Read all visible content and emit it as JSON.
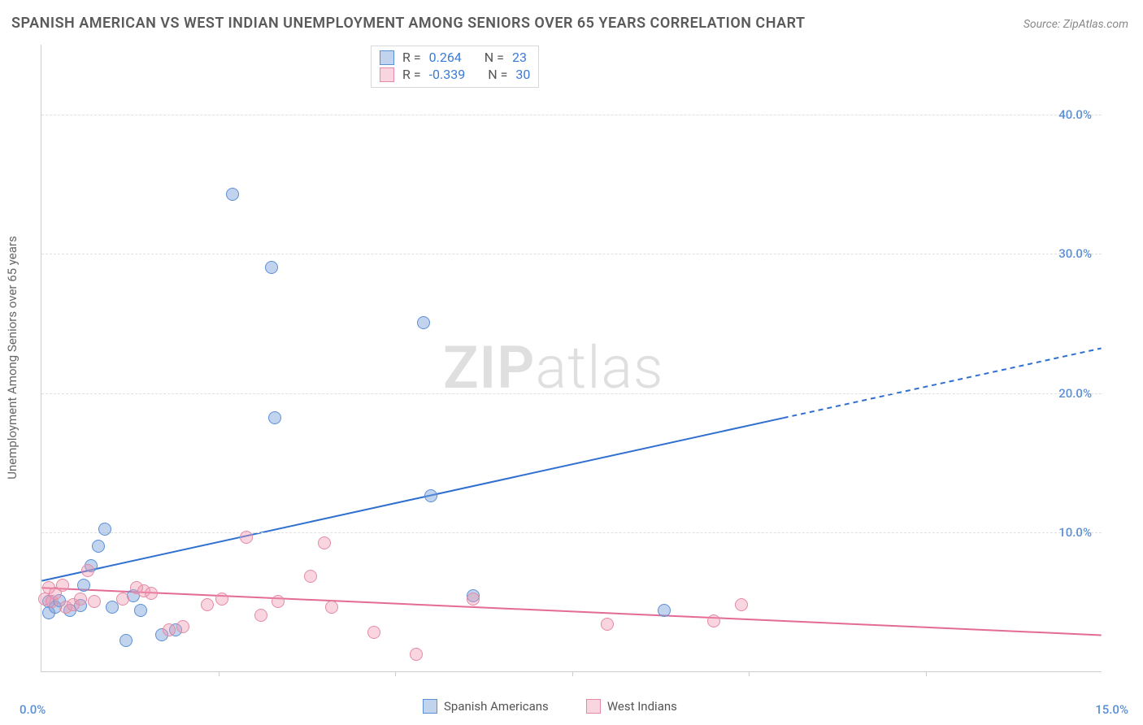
{
  "title": "SPANISH AMERICAN VS WEST INDIAN UNEMPLOYMENT AMONG SENIORS OVER 65 YEARS CORRELATION CHART",
  "source_label": "Source: ZipAtlas.com",
  "y_axis_label": "Unemployment Among Seniors over 65 years",
  "watermark_a": "ZIP",
  "watermark_b": "atlas",
  "chart": {
    "type": "scatter",
    "background_color": "#ffffff",
    "grid_color": "#e0e0e0",
    "axis_color": "#cccccc",
    "xlim": [
      0,
      15
    ],
    "ylim": [
      0,
      45
    ],
    "x_ticks": [
      2.5,
      5.0,
      7.5,
      10.0,
      12.5
    ],
    "y_ticks": [
      10,
      20,
      30,
      40
    ],
    "y_tick_labels": [
      "10.0%",
      "20.0%",
      "30.0%",
      "40.0%"
    ],
    "y_tick_color": "#5b8fd6",
    "x_min_label": "0.0%",
    "x_max_label": "15.0%",
    "x_label_color": "#5b8fd6",
    "label_fontsize": 15,
    "marker_radius": 8,
    "marker_stroke_width": 1,
    "trend_line_width": 2
  },
  "series": [
    {
      "id": "spanish",
      "label": "Spanish Americans",
      "marker_fill": "rgba(120,160,215,0.45)",
      "marker_stroke": "#5b8fd6",
      "line_color": "#2f6fd0",
      "R": "0.264",
      "N": "23",
      "trend": {
        "x0": 0,
        "y0": 6.5,
        "x1_solid": 10.5,
        "y1_solid": 18.2,
        "x1": 15,
        "y1": 23.2
      },
      "points": [
        {
          "x": 0.1,
          "y": 5.0
        },
        {
          "x": 0.1,
          "y": 4.2
        },
        {
          "x": 0.2,
          "y": 4.6
        },
        {
          "x": 0.25,
          "y": 5.1
        },
        {
          "x": 0.4,
          "y": 4.4
        },
        {
          "x": 0.55,
          "y": 4.7
        },
        {
          "x": 0.6,
          "y": 6.2
        },
        {
          "x": 0.7,
          "y": 7.6
        },
        {
          "x": 0.8,
          "y": 9.0
        },
        {
          "x": 0.9,
          "y": 10.2
        },
        {
          "x": 1.0,
          "y": 4.6
        },
        {
          "x": 1.2,
          "y": 2.2
        },
        {
          "x": 1.3,
          "y": 5.4
        },
        {
          "x": 1.4,
          "y": 4.4
        },
        {
          "x": 1.7,
          "y": 2.6
        },
        {
          "x": 1.9,
          "y": 3.0
        },
        {
          "x": 2.7,
          "y": 34.2
        },
        {
          "x": 3.25,
          "y": 29.0
        },
        {
          "x": 3.3,
          "y": 18.2
        },
        {
          "x": 5.4,
          "y": 25.0
        },
        {
          "x": 5.5,
          "y": 12.6
        },
        {
          "x": 6.1,
          "y": 5.4
        },
        {
          "x": 8.8,
          "y": 4.4
        }
      ]
    },
    {
      "id": "west-indian",
      "label": "West Indians",
      "marker_fill": "rgba(240,150,175,0.40)",
      "marker_stroke": "#e48aa6",
      "line_color": "#e36b94",
      "R": "-0.339",
      "N": "30",
      "trend": {
        "x0": 0,
        "y0": 6.0,
        "x1_solid": 15,
        "y1_solid": 2.6,
        "x1": 15,
        "y1": 2.6
      },
      "points": [
        {
          "x": 0.05,
          "y": 5.2
        },
        {
          "x": 0.1,
          "y": 6.0
        },
        {
          "x": 0.15,
          "y": 5.0
        },
        {
          "x": 0.2,
          "y": 5.6
        },
        {
          "x": 0.3,
          "y": 6.2
        },
        {
          "x": 0.35,
          "y": 4.6
        },
        {
          "x": 0.45,
          "y": 4.8
        },
        {
          "x": 0.55,
          "y": 5.2
        },
        {
          "x": 0.65,
          "y": 7.2
        },
        {
          "x": 0.75,
          "y": 5.0
        },
        {
          "x": 1.15,
          "y": 5.2
        },
        {
          "x": 1.35,
          "y": 6.0
        },
        {
          "x": 1.45,
          "y": 5.8
        },
        {
          "x": 1.55,
          "y": 5.6
        },
        {
          "x": 1.8,
          "y": 3.0
        },
        {
          "x": 2.0,
          "y": 3.2
        },
        {
          "x": 2.35,
          "y": 4.8
        },
        {
          "x": 2.55,
          "y": 5.2
        },
        {
          "x": 2.9,
          "y": 9.6
        },
        {
          "x": 3.1,
          "y": 4.0
        },
        {
          "x": 3.35,
          "y": 5.0
        },
        {
          "x": 3.8,
          "y": 6.8
        },
        {
          "x": 4.0,
          "y": 9.2
        },
        {
          "x": 4.1,
          "y": 4.6
        },
        {
          "x": 4.7,
          "y": 2.8
        },
        {
          "x": 5.3,
          "y": 1.2
        },
        {
          "x": 6.1,
          "y": 5.2
        },
        {
          "x": 8.0,
          "y": 3.4
        },
        {
          "x": 9.5,
          "y": 3.6
        },
        {
          "x": 9.9,
          "y": 4.8
        }
      ]
    }
  ],
  "stats_legend": {
    "r_prefix": "R =",
    "n_prefix": "N =",
    "value_color": "#3a7bd5"
  }
}
